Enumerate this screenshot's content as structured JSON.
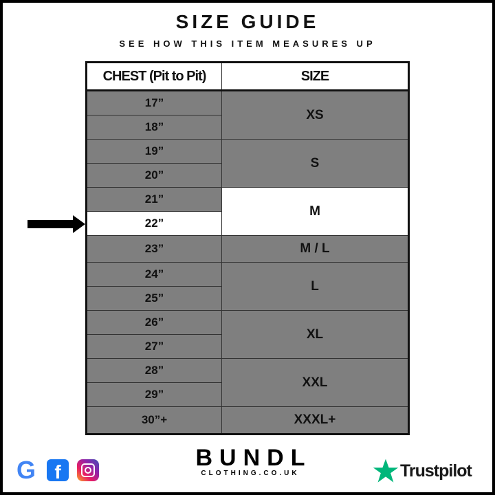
{
  "header": {
    "title": "SIZE GUIDE",
    "subtitle": "SEE HOW THIS ITEM MEASURES UP"
  },
  "table": {
    "columns": [
      "CHEST (Pit to Pit)",
      "SIZE"
    ],
    "chest": [
      "17”",
      "18”",
      "19”",
      "20”",
      "21”",
      "22”",
      "23”",
      "24”",
      "25”",
      "26”",
      "27”",
      "28”",
      "29”",
      "30”+"
    ],
    "sizes": [
      "XS",
      "S",
      "M",
      "M / L",
      "L",
      "XL",
      "XXL",
      "XXXL+"
    ],
    "highlighted_chest": "22”",
    "highlighted_size": "M",
    "cell_color": "#7f7f7f",
    "highlight_color": "#ffffff"
  },
  "footer": {
    "social_icons": [
      "google-icon",
      "facebook-icon",
      "instagram-icon"
    ],
    "google_glyph": "G",
    "facebook_glyph": "f",
    "brand_name": "BUNDL",
    "brand_site": "CLOTHING.CO.UK",
    "trustpilot": "Trustpilot",
    "trustpilot_color": "#00b67a"
  }
}
